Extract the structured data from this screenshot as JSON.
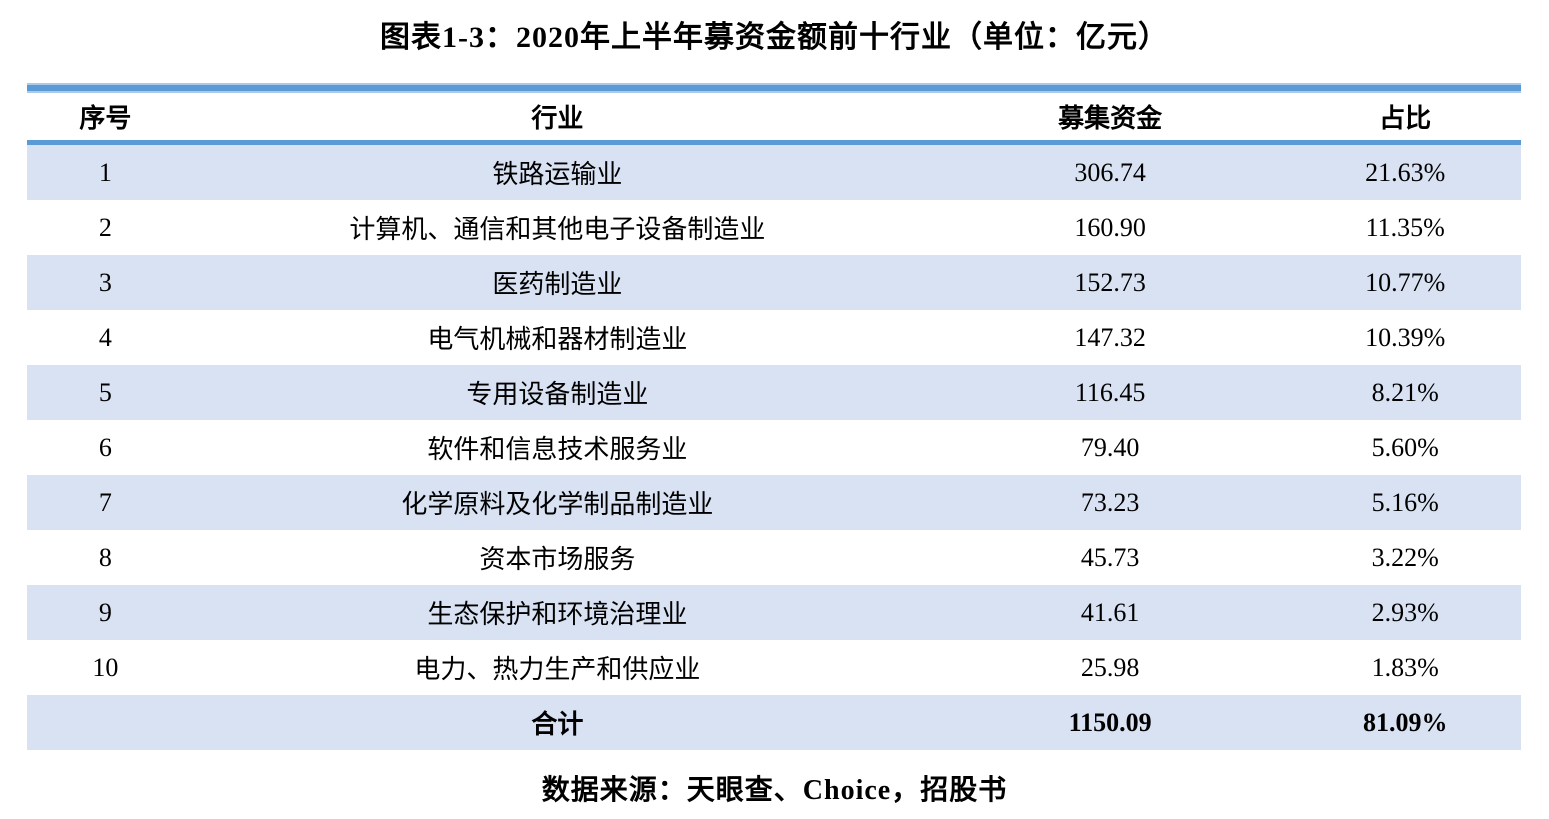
{
  "page": {
    "title": "图表1-3：2020年上半年募资金额前十行业（单位：亿元）",
    "source_note": "数据来源：天眼查、Choice，招股书"
  },
  "table": {
    "columns": {
      "no": "序号",
      "industry": "行业",
      "amount": "募集资金",
      "share": "占比"
    },
    "rows": [
      {
        "no": "1",
        "industry": "铁路运输业",
        "amount": "306.74",
        "share": "21.63%"
      },
      {
        "no": "2",
        "industry": "计算机、通信和其他电子设备制造业",
        "amount": "160.90",
        "share": "11.35%"
      },
      {
        "no": "3",
        "industry": "医药制造业",
        "amount": "152.73",
        "share": "10.77%"
      },
      {
        "no": "4",
        "industry": "电气机械和器材制造业",
        "amount": "147.32",
        "share": "10.39%"
      },
      {
        "no": "5",
        "industry": "专用设备制造业",
        "amount": "116.45",
        "share": "8.21%"
      },
      {
        "no": "6",
        "industry": "软件和信息技术服务业",
        "amount": "79.40",
        "share": "5.60%"
      },
      {
        "no": "7",
        "industry": "化学原料及化学制品制造业",
        "amount": "73.23",
        "share": "5.16%"
      },
      {
        "no": "8",
        "industry": "资本市场服务",
        "amount": "45.73",
        "share": "3.22%"
      },
      {
        "no": "9",
        "industry": "生态保护和环境治理业",
        "amount": "41.61",
        "share": "2.93%"
      },
      {
        "no": "10",
        "industry": "电力、热力生产和供应业",
        "amount": "25.98",
        "share": "1.83%"
      }
    ],
    "total": {
      "no": "",
      "label": "合计",
      "amount": "1150.09",
      "share": "81.09%"
    }
  },
  "colors": {
    "accent_blue": "#5b9bd5",
    "accent_blue_light": "#aacae9",
    "row_band": "#d9e2f3",
    "text": "#000000"
  },
  "chart_data": {
    "type": "table",
    "title": "图表1-3：2020年上半年募资金额前十行业（单位：亿元）",
    "columns": [
      "序号",
      "行业",
      "募集资金",
      "占比"
    ],
    "unit": "亿元",
    "rows": [
      [
        1,
        "铁路运输业",
        306.74,
        "21.63%"
      ],
      [
        2,
        "计算机、通信和其他电子设备制造业",
        160.9,
        "11.35%"
      ],
      [
        3,
        "医药制造业",
        152.73,
        "10.77%"
      ],
      [
        4,
        "电气机械和器材制造业",
        147.32,
        "10.39%"
      ],
      [
        5,
        "专用设备制造业",
        116.45,
        "8.21%"
      ],
      [
        6,
        "软件和信息技术服务业",
        79.4,
        "5.60%"
      ],
      [
        7,
        "化学原料及化学制品制造业",
        73.23,
        "5.16%"
      ],
      [
        8,
        "资本市场服务",
        45.73,
        "3.22%"
      ],
      [
        9,
        "生态保护和环境治理业",
        41.61,
        "2.93%"
      ],
      [
        10,
        "电力、热力生产和供应业",
        25.98,
        "1.83%"
      ]
    ],
    "total_row": [
      "",
      "合计",
      1150.09,
      "81.09%"
    ],
    "source": "数据来源：天眼查、Choice，招股书"
  }
}
